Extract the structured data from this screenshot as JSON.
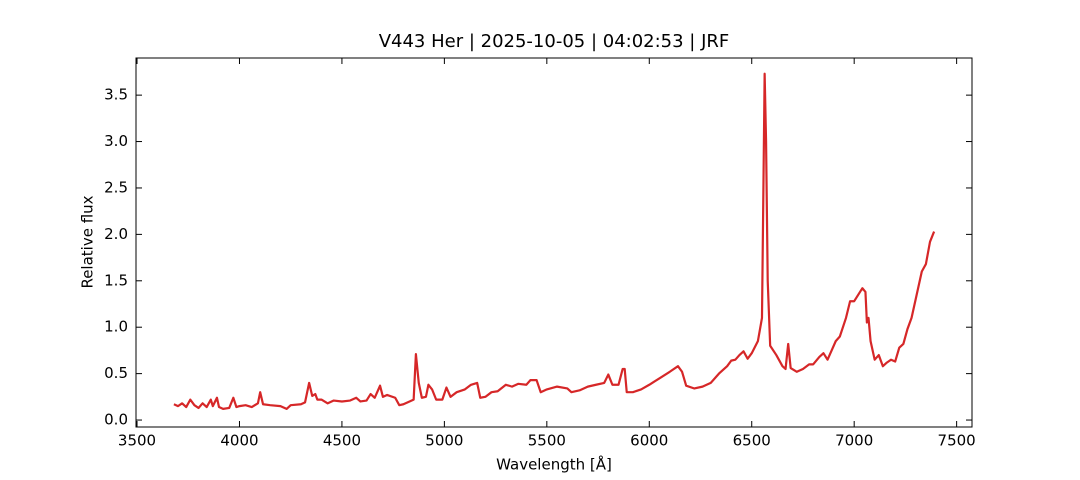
{
  "chart_data": {
    "type": "line",
    "title": "V443 Her | 2025-10-05 | 04:02:53 | JRF",
    "x_label": "Wavelength [Å]",
    "y_label": "Relative flux",
    "xlim": [
      3495,
      7575
    ],
    "ylim": [
      -0.075,
      3.9
    ],
    "xticks": [
      3500,
      4000,
      4500,
      5000,
      5500,
      6000,
      6500,
      7000,
      7500
    ],
    "yticks": [
      {
        "value": 0,
        "label": "0.0"
      },
      0.5,
      {
        "value": 1,
        "label": "1.0"
      },
      1.5,
      {
        "value": 2,
        "label": "2.0"
      },
      2.5,
      {
        "value": 3,
        "label": "3.0"
      },
      3.5
    ],
    "grid": false,
    "series": [
      {
        "name": "V443 Her",
        "color": "#d62728",
        "x": [
          3680,
          3700,
          3720,
          3740,
          3760,
          3780,
          3800,
          3820,
          3840,
          3860,
          3870,
          3890,
          3900,
          3920,
          3950,
          3970,
          3985,
          4000,
          4030,
          4060,
          4090,
          4101,
          4115,
          4150,
          4200,
          4230,
          4250,
          4300,
          4320,
          4340,
          4355,
          4370,
          4380,
          4400,
          4430,
          4460,
          4500,
          4540,
          4570,
          4590,
          4620,
          4640,
          4660,
          4686,
          4700,
          4720,
          4760,
          4780,
          4800,
          4830,
          4850,
          4861,
          4875,
          4890,
          4910,
          4922,
          4940,
          4960,
          4990,
          5010,
          5030,
          5060,
          5100,
          5130,
          5160,
          5175,
          5200,
          5230,
          5260,
          5300,
          5330,
          5360,
          5400,
          5420,
          5450,
          5470,
          5500,
          5550,
          5600,
          5620,
          5660,
          5700,
          5740,
          5780,
          5800,
          5820,
          5850,
          5870,
          5880,
          5890,
          5920,
          5960,
          6000,
          6050,
          6100,
          6140,
          6160,
          6180,
          6220,
          6260,
          6300,
          6340,
          6380,
          6400,
          6420,
          6440,
          6460,
          6480,
          6500,
          6530,
          6550,
          6557,
          6563,
          6570,
          6578,
          6590,
          6620,
          6650,
          6665,
          6678,
          6690,
          6720,
          6750,
          6780,
          6800,
          6830,
          6850,
          6870,
          6890,
          6910,
          6930,
          6960,
          6980,
          7000,
          7020,
          7040,
          7055,
          7062,
          7070,
          7080,
          7100,
          7120,
          7140,
          7160,
          7180,
          7200,
          7220,
          7240,
          7260,
          7280,
          7300,
          7330,
          7350,
          7370,
          7390
        ],
        "values": [
          0.17,
          0.15,
          0.18,
          0.14,
          0.22,
          0.16,
          0.13,
          0.18,
          0.14,
          0.22,
          0.15,
          0.24,
          0.14,
          0.12,
          0.13,
          0.24,
          0.14,
          0.15,
          0.16,
          0.14,
          0.18,
          0.3,
          0.17,
          0.16,
          0.15,
          0.12,
          0.16,
          0.17,
          0.19,
          0.4,
          0.26,
          0.28,
          0.22,
          0.22,
          0.18,
          0.21,
          0.2,
          0.21,
          0.24,
          0.2,
          0.21,
          0.28,
          0.24,
          0.37,
          0.25,
          0.27,
          0.24,
          0.16,
          0.17,
          0.2,
          0.22,
          0.71,
          0.4,
          0.24,
          0.25,
          0.38,
          0.33,
          0.22,
          0.22,
          0.35,
          0.25,
          0.3,
          0.33,
          0.38,
          0.4,
          0.24,
          0.25,
          0.3,
          0.31,
          0.38,
          0.36,
          0.39,
          0.38,
          0.43,
          0.43,
          0.3,
          0.33,
          0.36,
          0.34,
          0.3,
          0.32,
          0.36,
          0.38,
          0.4,
          0.49,
          0.38,
          0.38,
          0.55,
          0.55,
          0.3,
          0.3,
          0.33,
          0.38,
          0.45,
          0.52,
          0.58,
          0.52,
          0.37,
          0.34,
          0.36,
          0.4,
          0.5,
          0.58,
          0.64,
          0.65,
          0.7,
          0.74,
          0.66,
          0.72,
          0.85,
          1.1,
          2.5,
          3.73,
          3.0,
          1.5,
          0.8,
          0.7,
          0.58,
          0.55,
          0.82,
          0.56,
          0.52,
          0.55,
          0.6,
          0.6,
          0.68,
          0.72,
          0.65,
          0.75,
          0.85,
          0.9,
          1.1,
          1.28,
          1.28,
          1.35,
          1.42,
          1.38,
          1.05,
          1.1,
          0.85,
          0.65,
          0.7,
          0.58,
          0.62,
          0.65,
          0.63,
          0.78,
          0.82,
          0.98,
          1.1,
          1.3,
          1.6,
          1.68,
          1.92,
          2.03
        ]
      }
    ]
  }
}
